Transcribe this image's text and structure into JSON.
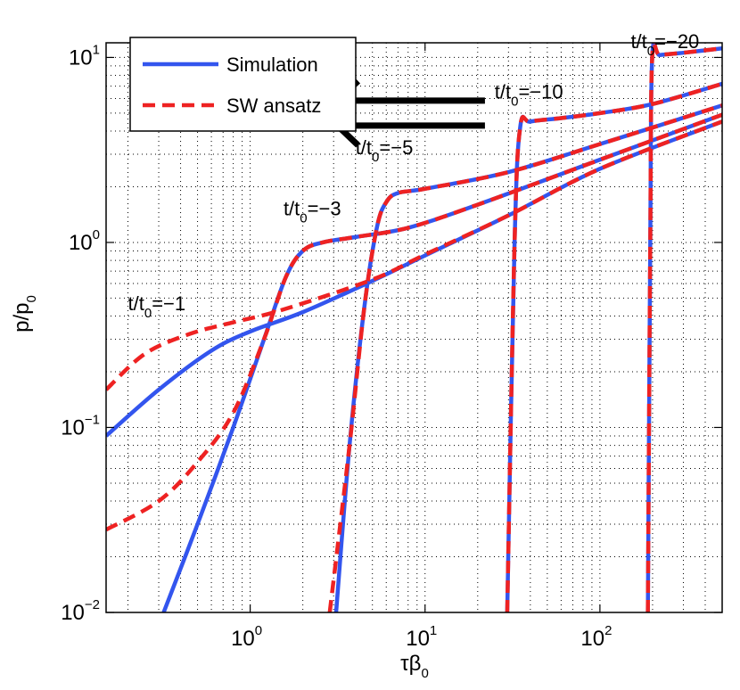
{
  "chart_data": {
    "type": "line",
    "scale": {
      "x": "log",
      "y": "log"
    },
    "xlim": [
      0.15,
      500
    ],
    "ylim": [
      0.01,
      12
    ],
    "xlabel": {
      "base": "τβ",
      "sub": "0"
    },
    "ylabel": {
      "base": "p/p",
      "sub": "0"
    },
    "x_ticks": [
      {
        "value": 1,
        "base": "10",
        "exp": "0"
      },
      {
        "value": 10,
        "base": "10",
        "exp": "1"
      },
      {
        "value": 100,
        "base": "10",
        "exp": "2"
      }
    ],
    "y_ticks": [
      {
        "value": 0.01,
        "base": "10",
        "exp": "−2"
      },
      {
        "value": 0.1,
        "base": "10",
        "exp": "−1"
      },
      {
        "value": 1,
        "base": "10",
        "exp": "0"
      },
      {
        "value": 10,
        "base": "10",
        "exp": "1"
      }
    ],
    "grid": "dotted",
    "legend": {
      "position": "top-left",
      "entries": [
        {
          "label": "Simulation",
          "color": "#3355ee",
          "style": "solid"
        },
        {
          "label": "SW ansatz",
          "color": "#ee2222",
          "style": "dashed"
        }
      ]
    },
    "annotations": [
      {
        "id": "t1",
        "base": "t/t",
        "sub": "0",
        "tail": "=−1",
        "x": 0.2,
        "y": 0.43
      },
      {
        "id": "t3",
        "base": "t/t",
        "sub": "0",
        "tail": "=−3",
        "x": 1.55,
        "y": 1.4
      },
      {
        "id": "t5",
        "base": "t/t",
        "sub": "0",
        "tail": "=−5",
        "x": 4.0,
        "y": 3.0
      },
      {
        "id": "t10",
        "base": "t/t",
        "sub": "0",
        "tail": "=−10",
        "x": 25,
        "y": 6.0
      },
      {
        "id": "t20",
        "base": "t/t",
        "sub": "0",
        "tail": "=−20",
        "x": 150,
        "y": 11.2
      }
    ],
    "arrow": {
      "direction": "left",
      "x_from": 22,
      "x_to": 2.65,
      "y": 5.0
    },
    "series": [
      {
        "name": "Simulation, t/t0=−1",
        "kind": "simulation",
        "x": [
          0.15,
          0.3,
          0.6,
          1.0,
          2,
          5,
          10,
          30,
          100,
          500
        ],
        "y": [
          0.09,
          0.16,
          0.26,
          0.33,
          0.42,
          0.62,
          0.85,
          1.4,
          2.5,
          4.5
        ]
      },
      {
        "name": "SW ansatz, t/t0=−1",
        "kind": "ansatz",
        "x": [
          0.15,
          0.25,
          0.45,
          0.8,
          1.5,
          5,
          10,
          30,
          100,
          500
        ],
        "y": [
          0.16,
          0.25,
          0.32,
          0.37,
          0.43,
          0.63,
          0.86,
          1.4,
          2.5,
          4.5
        ]
      },
      {
        "name": "Simulation, t/t0=−3",
        "kind": "simulation",
        "x": [
          0.32,
          0.5,
          0.8,
          1.2,
          1.6,
          2.0,
          2.6,
          4,
          8,
          20,
          100,
          500
        ],
        "y": [
          0.01,
          0.03,
          0.1,
          0.3,
          0.65,
          0.9,
          1.0,
          1.07,
          1.2,
          1.6,
          2.8,
          4.9
        ]
      },
      {
        "name": "SW ansatz, t/t0=−3",
        "kind": "ansatz",
        "x": [
          0.15,
          0.3,
          0.5,
          0.8,
          1.2,
          1.6,
          2.0,
          2.6,
          4,
          8,
          20,
          100,
          500
        ],
        "y": [
          0.028,
          0.04,
          0.065,
          0.12,
          0.3,
          0.65,
          0.9,
          1.0,
          1.07,
          1.2,
          1.6,
          2.8,
          4.9
        ]
      },
      {
        "name": "Simulation, t/t0=−5",
        "kind": "simulation",
        "x": [
          3.1,
          3.7,
          4.5,
          5.3,
          6.0,
          7.0,
          10,
          30,
          100,
          500
        ],
        "y": [
          0.01,
          0.08,
          0.45,
          1.2,
          1.65,
          1.85,
          1.95,
          2.4,
          3.4,
          5.5
        ]
      },
      {
        "name": "SW ansatz, t/t0=−5",
        "kind": "ansatz",
        "x": [
          2.85,
          3.7,
          4.5,
          5.3,
          6.0,
          7.0,
          10,
          30,
          100,
          500
        ],
        "y": [
          0.01,
          0.08,
          0.45,
          1.2,
          1.65,
          1.85,
          1.95,
          2.4,
          3.4,
          5.5
        ]
      },
      {
        "name": "Simulation, t/t0=−10",
        "kind": "simulation",
        "x": [
          29.5,
          32.5,
          35,
          40,
          60,
          100,
          200,
          500
        ],
        "y": [
          0.01,
          1.0,
          4.2,
          4.5,
          4.7,
          5.0,
          5.6,
          7.2
        ]
      },
      {
        "name": "SW ansatz, t/t0=−10",
        "kind": "ansatz",
        "x": [
          29.5,
          32.5,
          35,
          40,
          60,
          100,
          200,
          500
        ],
        "y": [
          0.01,
          1.0,
          4.2,
          4.5,
          4.7,
          5.0,
          5.6,
          7.2
        ]
      },
      {
        "name": "Simulation, t/t0=−20",
        "kind": "simulation",
        "x": [
          188,
          194,
          199,
          220,
          300,
          500
        ],
        "y": [
          0.01,
          1.0,
          10.0,
          10.3,
          10.6,
          11.2
        ]
      },
      {
        "name": "SW ansatz, t/t0=−20",
        "kind": "ansatz",
        "x": [
          188,
          194,
          199,
          220,
          300,
          500
        ],
        "y": [
          0.01,
          1.0,
          10.0,
          10.3,
          10.6,
          11.2
        ]
      }
    ]
  }
}
